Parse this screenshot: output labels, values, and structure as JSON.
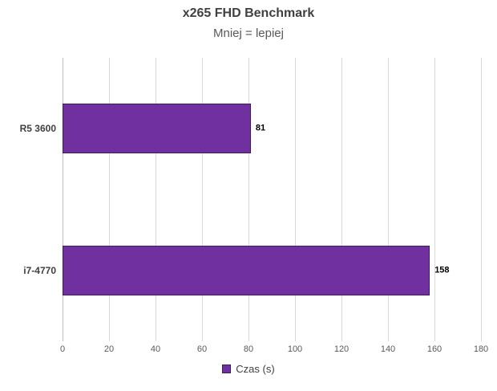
{
  "chart": {
    "title": "x265 FHD Benchmark",
    "subtitle": "Mniej = lepiej",
    "legend_label": "Czas (s)",
    "bar_color": "#7030a0",
    "bar_border_color": "#3f1e57",
    "gridline_color": "#d9d9d9"
  },
  "chart_data": {
    "type": "bar",
    "orientation": "horizontal",
    "title": "x265 FHD Benchmark",
    "subtitle": "Mniej = lepiej",
    "categories": [
      "R5 3600",
      "i7-4770"
    ],
    "series": [
      {
        "name": "Czas (s)",
        "values": [
          81,
          158
        ]
      }
    ],
    "data_labels": [
      "81",
      "158"
    ],
    "xlabel": "",
    "ylabel": "",
    "xlim": [
      0,
      180
    ],
    "xticks": [
      0,
      20,
      40,
      60,
      80,
      100,
      120,
      140,
      160,
      180
    ],
    "grid": true,
    "legend_position": "bottom"
  }
}
